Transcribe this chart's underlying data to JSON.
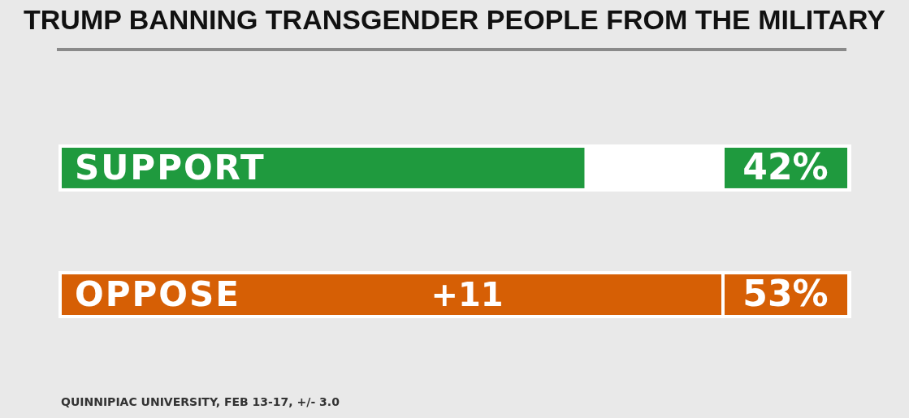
{
  "chart_data": {
    "type": "bar",
    "orientation": "horizontal",
    "title": "TRUMP BANNING TRANSGENDER PEOPLE FROM THE MILITARY",
    "categories": [
      "SUPPORT",
      "OPPOSE"
    ],
    "values": [
      42,
      53
    ],
    "value_labels": [
      "42%",
      "53%"
    ],
    "colors": [
      "#1f9a3e",
      "#d65f05"
    ],
    "annotations": [
      "+11",
      "QUINNIPIAC UNIVERSITY, FEB 13-17, +/- 3.0"
    ]
  }
}
